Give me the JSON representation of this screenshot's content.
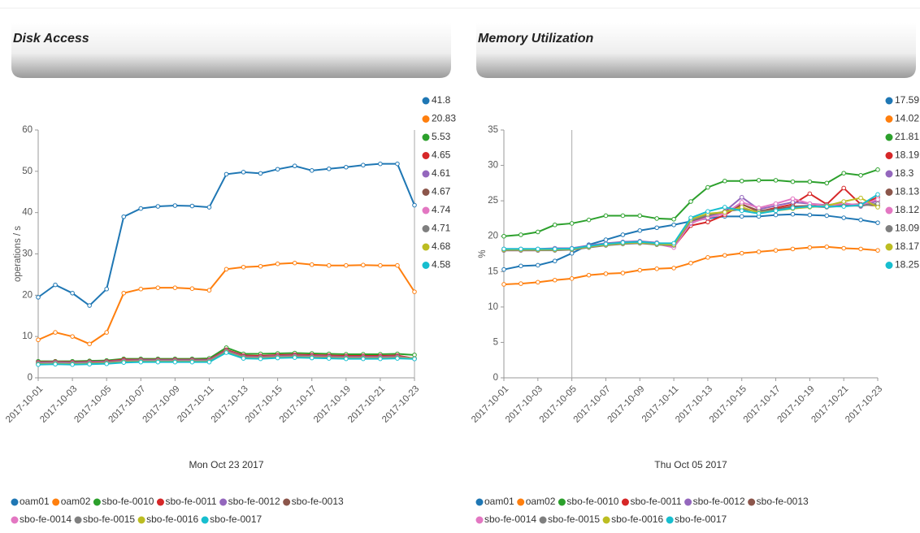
{
  "chart_data": [
    {
      "type": "line",
      "title": "Disk Access",
      "y_label": "operations / s",
      "hover_label": "Mon Oct 23 2017",
      "categories": [
        "2017-10-01",
        null,
        "2017-10-03",
        null,
        "2017-10-05",
        null,
        "2017-10-07",
        null,
        "2017-10-09",
        null,
        "2017-10-11",
        null,
        "2017-10-13",
        null,
        "2017-10-15",
        null,
        "2017-10-17",
        null,
        "2017-10-19",
        null,
        "2017-10-21",
        null,
        "2017-10-23"
      ],
      "ylim": [
        0,
        60
      ],
      "yticks": [
        0,
        10,
        20,
        30,
        40,
        50,
        60
      ],
      "grid": false,
      "series": [
        {
          "name": "oam01",
          "color": "#1f77b4",
          "hover_value": 41.8,
          "values": [
            19.5,
            22.5,
            20.5,
            17.5,
            21.5,
            39,
            41,
            41.5,
            41.7,
            41.6,
            41.3,
            49.3,
            49.8,
            49.5,
            50.5,
            51.3,
            50.2,
            50.6,
            51,
            51.5,
            51.8,
            51.8,
            41.8
          ]
        },
        {
          "name": "oam02",
          "color": "#ff7f0e",
          "hover_value": 20.83,
          "values": [
            9.2,
            11,
            10,
            8.2,
            11,
            20.5,
            21.5,
            21.8,
            21.8,
            21.6,
            21.2,
            26.3,
            26.8,
            27,
            27.6,
            27.8,
            27.4,
            27.2,
            27.2,
            27.3,
            27.2,
            27.2,
            20.83
          ]
        },
        {
          "name": "sbo-fe-0010",
          "color": "#2ca02c",
          "hover_value": 5.53,
          "values": [
            4,
            4,
            4,
            4.1,
            4.2,
            4.6,
            4.6,
            4.6,
            4.6,
            4.6,
            4.7,
            7.3,
            5.8,
            5.8,
            5.9,
            6,
            5.9,
            5.8,
            5.7,
            5.7,
            5.7,
            5.8,
            5.53
          ]
        },
        {
          "name": "sbo-fe-0011",
          "color": "#d62728",
          "hover_value": 4.65,
          "values": [
            3.8,
            3.9,
            3.8,
            3.9,
            4.0,
            4.4,
            4.4,
            4.4,
            4.4,
            4.4,
            4.4,
            6.8,
            5.4,
            5.3,
            5.5,
            5.6,
            5.5,
            5.4,
            5.3,
            5.3,
            5.3,
            5.4,
            4.65
          ]
        },
        {
          "name": "sbo-fe-0012",
          "color": "#9467bd",
          "hover_value": 4.61,
          "values": [
            3.7,
            3.8,
            3.7,
            3.8,
            3.9,
            4.2,
            4.3,
            4.3,
            4.3,
            4.3,
            4.3,
            6.6,
            5.2,
            5.1,
            5.3,
            5.4,
            5.3,
            5.2,
            5.1,
            5.1,
            5.1,
            5.2,
            4.61
          ]
        },
        {
          "name": "sbo-fe-0013",
          "color": "#8c564b",
          "hover_value": 4.67,
          "values": [
            3.6,
            3.7,
            3.6,
            3.7,
            3.8,
            4.1,
            4.2,
            4.2,
            4.2,
            4.2,
            4.2,
            6.5,
            5.1,
            5.0,
            5.2,
            5.3,
            5.2,
            5.1,
            5.0,
            5.0,
            5.0,
            5.1,
            4.67
          ]
        },
        {
          "name": "sbo-fe-0014",
          "color": "#e377c2",
          "hover_value": 4.74,
          "values": [
            3.5,
            3.6,
            3.5,
            3.6,
            3.7,
            4.0,
            4.1,
            4.1,
            4.1,
            4.1,
            4.1,
            6.4,
            5.0,
            4.9,
            5.1,
            5.2,
            5.1,
            5.0,
            4.9,
            4.9,
            4.9,
            5.0,
            4.74
          ]
        },
        {
          "name": "sbo-fe-0015",
          "color": "#7f7f7f",
          "hover_value": 4.71,
          "values": [
            3.4,
            3.5,
            3.4,
            3.5,
            3.6,
            3.9,
            4.0,
            4.0,
            4.0,
            4.0,
            4.0,
            6.3,
            4.9,
            4.8,
            5.0,
            5.1,
            5.0,
            4.9,
            4.8,
            4.8,
            4.8,
            4.9,
            4.71
          ]
        },
        {
          "name": "sbo-fe-0016",
          "color": "#bcbd22",
          "hover_value": 4.68,
          "values": [
            3.3,
            3.4,
            3.3,
            3.4,
            3.5,
            3.8,
            3.9,
            3.9,
            3.9,
            3.9,
            3.9,
            6.2,
            4.8,
            4.7,
            4.9,
            5.0,
            4.9,
            4.8,
            4.7,
            4.7,
            4.7,
            4.8,
            4.68
          ]
        },
        {
          "name": "sbo-fe-0017",
          "color": "#17becf",
          "hover_value": 4.58,
          "values": [
            3.2,
            3.3,
            3.2,
            3.3,
            3.4,
            3.7,
            3.8,
            3.8,
            3.8,
            3.8,
            3.8,
            6.1,
            4.7,
            4.6,
            4.8,
            4.9,
            4.8,
            4.7,
            4.6,
            4.6,
            4.6,
            4.7,
            4.58
          ]
        }
      ]
    },
    {
      "type": "line",
      "title": "Memory Utilization",
      "y_label": "%",
      "hover_label": "Thu Oct 05 2017",
      "categories": [
        "2017-10-01",
        null,
        "2017-10-03",
        null,
        "2017-10-05",
        null,
        "2017-10-07",
        null,
        "2017-10-09",
        null,
        "2017-10-11",
        null,
        "2017-10-13",
        null,
        "2017-10-15",
        null,
        "2017-10-17",
        null,
        "2017-10-19",
        null,
        "2017-10-21",
        null,
        "2017-10-23"
      ],
      "ylim": [
        0,
        35
      ],
      "yticks": [
        0,
        5,
        10,
        15,
        20,
        25,
        30,
        35
      ],
      "grid": false,
      "series": [
        {
          "name": "oam01",
          "color": "#1f77b4",
          "hover_value": 17.59,
          "values": [
            15.3,
            15.8,
            15.9,
            16.5,
            17.59,
            18.8,
            19.5,
            20.2,
            20.8,
            21.2,
            21.6,
            22.1,
            22.5,
            22.8,
            22.8,
            22.8,
            23,
            23.1,
            23,
            22.9,
            22.6,
            22.3,
            21.9
          ]
        },
        {
          "name": "oam02",
          "color": "#ff7f0e",
          "hover_value": 14.02,
          "values": [
            13.2,
            13.3,
            13.5,
            13.8,
            14.02,
            14.5,
            14.7,
            14.8,
            15.2,
            15.4,
            15.5,
            16.2,
            17,
            17.3,
            17.6,
            17.8,
            18,
            18.2,
            18.4,
            18.5,
            18.3,
            18.2,
            18
          ]
        },
        {
          "name": "sbo-fe-0010",
          "color": "#2ca02c",
          "hover_value": 21.81,
          "values": [
            20,
            20.2,
            20.6,
            21.6,
            21.81,
            22.3,
            22.9,
            22.9,
            22.9,
            22.5,
            22.4,
            24.9,
            26.9,
            27.8,
            27.8,
            27.9,
            27.9,
            27.7,
            27.7,
            27.5,
            28.9,
            28.6,
            29.4
          ]
        },
        {
          "name": "sbo-fe-0011",
          "color": "#d62728",
          "hover_value": 18.19,
          "values": [
            18.1,
            18.1,
            18.1,
            18.2,
            18.19,
            18.6,
            18.9,
            19.1,
            19.2,
            19,
            18.5,
            21.5,
            22,
            23,
            24.5,
            23.5,
            24,
            24.5,
            26,
            24.5,
            26.8,
            24.5,
            25.5
          ]
        },
        {
          "name": "sbo-fe-0012",
          "color": "#9467bd",
          "hover_value": 18.3,
          "values": [
            18.2,
            18.2,
            18.2,
            18.3,
            18.3,
            18.7,
            19,
            19.2,
            19.3,
            19.1,
            18.6,
            21.8,
            22.8,
            23.5,
            25.5,
            23.8,
            24.3,
            24.8,
            24.6,
            24.4,
            24.7,
            24.2,
            25
          ]
        },
        {
          "name": "sbo-fe-0013",
          "color": "#8c564b",
          "hover_value": 18.13,
          "values": [
            18,
            18,
            18,
            18.1,
            18.13,
            18.5,
            18.8,
            19,
            19.1,
            18.9,
            18.8,
            22,
            23,
            23.4,
            24.5,
            23.6,
            23.8,
            24.2,
            24.3,
            24.2,
            24.5,
            24.5,
            24.3
          ]
        },
        {
          "name": "sbo-fe-0014",
          "color": "#e377c2",
          "hover_value": 18.12,
          "values": [
            18,
            18,
            18,
            18.1,
            18.12,
            18.5,
            18.8,
            19,
            19.1,
            18.9,
            18.4,
            21.9,
            22.6,
            23.2,
            24.8,
            24,
            24.6,
            25.3,
            24.6,
            24.3,
            24.6,
            24.4,
            25.2
          ]
        },
        {
          "name": "sbo-fe-0015",
          "color": "#7f7f7f",
          "hover_value": 18.09,
          "values": [
            18,
            18,
            18,
            18,
            18.09,
            18.4,
            18.7,
            18.9,
            19,
            18.8,
            18.7,
            22.2,
            23,
            23.5,
            23.8,
            23.5,
            23.7,
            24,
            24.2,
            24.1,
            24.3,
            24.3,
            24.6
          ]
        },
        {
          "name": "sbo-fe-0016",
          "color": "#bcbd22",
          "hover_value": 18.17,
          "values": [
            18.1,
            18.1,
            18.1,
            18.1,
            18.17,
            18.5,
            18.8,
            19,
            19.1,
            18.9,
            18.8,
            22.4,
            23.2,
            23.4,
            24.1,
            23.3,
            23.6,
            23.9,
            24.1,
            24.3,
            24.9,
            25.4,
            24.1
          ]
        },
        {
          "name": "sbo-fe-0017",
          "color": "#17becf",
          "hover_value": 18.25,
          "values": [
            18.2,
            18.2,
            18.2,
            18.2,
            18.25,
            18.6,
            18.9,
            19.1,
            19.2,
            19,
            19,
            22.6,
            23.5,
            24.1,
            23.6,
            23.2,
            23.6,
            24,
            24.2,
            24.2,
            24.2,
            24.4,
            25.9
          ]
        }
      ]
    }
  ]
}
